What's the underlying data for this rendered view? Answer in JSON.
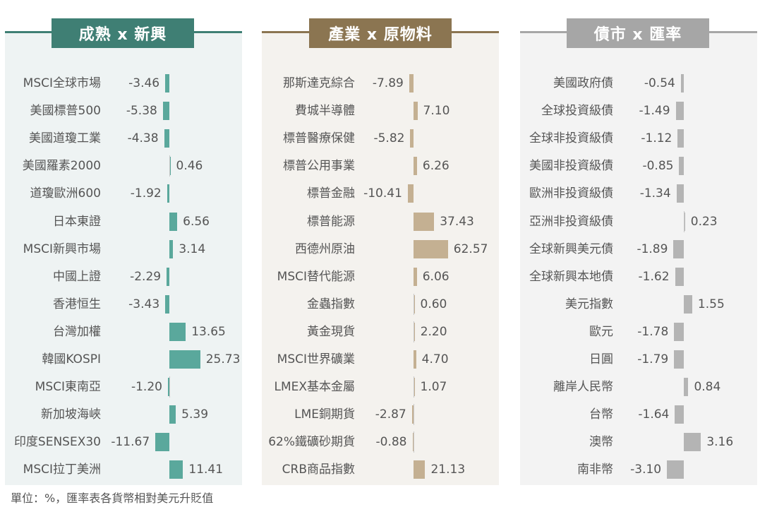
{
  "footnote": "單位：%，匯率表各貨幣相對美元升貶值",
  "chart_data": [
    {
      "type": "bar",
      "orientation": "horizontal",
      "title": "成熟 x 新興",
      "colors": {
        "bar": "#5aa89c",
        "header": "#3f7f74",
        "panel": "#eef3f3"
      },
      "categories": [
        "MSCI全球市場",
        "美國標普500",
        "美國道瓊工業",
        "美國羅素2000",
        "道瓊歐洲600",
        "日本東證",
        "MSCI新興市場",
        "中國上證",
        "香港恒生",
        "台灣加權",
        "韓國KOSPI",
        "MSCI東南亞",
        "新加坡海峽",
        "印度SENSEX30",
        "MSCI拉丁美洲"
      ],
      "values": [
        -3.46,
        -5.38,
        -4.38,
        0.46,
        -1.92,
        6.56,
        3.14,
        -2.29,
        -3.43,
        13.65,
        25.73,
        -1.2,
        5.39,
        -11.67,
        11.41
      ],
      "labels": [
        "-3.46",
        "-5.38",
        "-4.38",
        "0.46",
        "-1.92",
        "6.56",
        "3.14",
        "-2.29",
        "-3.43",
        "13.65",
        "25.73",
        "-1.20",
        "5.39",
        "-11.67",
        "11.41"
      ]
    },
    {
      "type": "bar",
      "orientation": "horizontal",
      "title": "產業 x 原物料",
      "colors": {
        "bar": "#c4b092",
        "header": "#8b7551",
        "panel": "#f4f2ee"
      },
      "categories": [
        "那斯達克綜合",
        "費城半導體",
        "標普醫療保健",
        "標普公用事業",
        "標普金融",
        "標普能源",
        "西德州原油",
        "MSCI替代能源",
        "金蟲指數",
        "黃金現貨",
        "MSCI世界礦業",
        "LMEX基本金屬",
        "LME銅期貨",
        "62%鐵礦砂期貨",
        "CRB商品指數"
      ],
      "values": [
        -7.89,
        7.1,
        -5.82,
        6.26,
        -10.41,
        37.43,
        62.57,
        6.06,
        0.6,
        2.2,
        4.7,
        1.07,
        -2.87,
        -0.88,
        21.13
      ],
      "labels": [
        "-7.89",
        "7.10",
        "-5.82",
        "6.26",
        "-10.41",
        "37.43",
        "62.57",
        "6.06",
        "0.60",
        "2.20",
        "4.70",
        "1.07",
        "-2.87",
        "-0.88",
        "21.13"
      ]
    },
    {
      "type": "bar",
      "orientation": "horizontal",
      "title": "債市 x 匯率",
      "colors": {
        "bar": "#b4b4b4",
        "header": "#a6a6a6",
        "panel": "#f3f3f3"
      },
      "categories": [
        "美國政府債",
        "全球投資級債",
        "全球非投資級債",
        "美國非投資級債",
        "歐洲非投資級債",
        "亞洲非投資級債",
        "全球新興美元債",
        "全球新興本地債",
        "美元指數",
        "歐元",
        "日圓",
        "離岸人民幣",
        "台幣",
        "澳幣",
        "南非幣"
      ],
      "values": [
        -0.54,
        -1.49,
        -1.12,
        -0.85,
        -1.34,
        0.23,
        -1.89,
        -1.62,
        1.55,
        -1.78,
        -1.79,
        0.84,
        -1.64,
        3.16,
        -3.1
      ],
      "labels": [
        "-0.54",
        "-1.49",
        "-1.12",
        "-0.85",
        "-1.34",
        "0.23",
        "-1.89",
        "-1.62",
        "1.55",
        "-1.78",
        "-1.79",
        "0.84",
        "-1.64",
        "3.16",
        "-3.10"
      ]
    }
  ]
}
